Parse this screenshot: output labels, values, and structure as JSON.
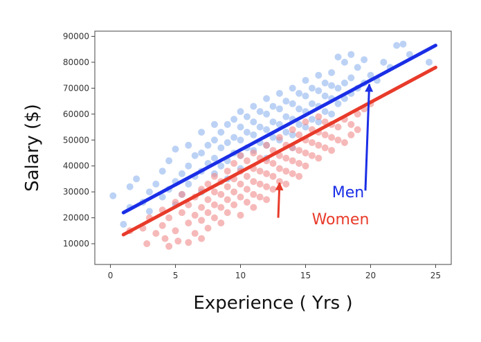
{
  "chart_data": {
    "type": "scatter",
    "title": "",
    "xlabel": "Experience ( Yrs )",
    "ylabel": "Salary ($)",
    "xlim": [
      -1.2,
      26.2
    ],
    "ylim": [
      2000,
      92000
    ],
    "xticks": [
      0,
      5,
      10,
      15,
      20,
      25
    ],
    "yticks": [
      10000,
      20000,
      30000,
      40000,
      50000,
      60000,
      70000,
      80000,
      90000
    ],
    "grid": false,
    "series": [
      {
        "name": "Men",
        "color": "#1a2ee6",
        "point_color": "#6b9be8",
        "fit_line": {
          "x": [
            1,
            25
          ],
          "y": [
            22000,
            86500
          ]
        },
        "points": [
          [
            0.2,
            28500
          ],
          [
            1.0,
            17500
          ],
          [
            1.5,
            24000
          ],
          [
            1.5,
            32000
          ],
          [
            2.0,
            35000
          ],
          [
            2.5,
            26000
          ],
          [
            3.0,
            30000
          ],
          [
            3.0,
            22500
          ],
          [
            3.5,
            33000
          ],
          [
            4.0,
            28000
          ],
          [
            4.0,
            38000
          ],
          [
            4.5,
            31000
          ],
          [
            4.5,
            42000
          ],
          [
            5.0,
            34000
          ],
          [
            5.0,
            25000
          ],
          [
            5.0,
            46500
          ],
          [
            5.5,
            37000
          ],
          [
            5.5,
            29000
          ],
          [
            6.0,
            40000
          ],
          [
            6.0,
            33000
          ],
          [
            6.0,
            48000
          ],
          [
            6.5,
            36000
          ],
          [
            6.5,
            44000
          ],
          [
            7.0,
            38000
          ],
          [
            7.0,
            45000
          ],
          [
            7.0,
            53000
          ],
          [
            7.0,
            30000
          ],
          [
            7.5,
            41000
          ],
          [
            7.5,
            48000
          ],
          [
            8.0,
            37000
          ],
          [
            8.0,
            43000
          ],
          [
            8.0,
            50000
          ],
          [
            8.0,
            56000
          ],
          [
            8.5,
            40000
          ],
          [
            8.5,
            47000
          ],
          [
            8.5,
            53000
          ],
          [
            9.0,
            42000
          ],
          [
            9.0,
            49000
          ],
          [
            9.0,
            56000
          ],
          [
            9.0,
            35000
          ],
          [
            9.5,
            45000
          ],
          [
            9.5,
            51000
          ],
          [
            9.5,
            58000
          ],
          [
            10.0,
            44000
          ],
          [
            10.0,
            50000
          ],
          [
            10.0,
            55000
          ],
          [
            10.0,
            61000
          ],
          [
            10.0,
            39000
          ],
          [
            10.5,
            47000
          ],
          [
            10.5,
            53000
          ],
          [
            10.5,
            59000
          ],
          [
            11.0,
            46000
          ],
          [
            11.0,
            52000
          ],
          [
            11.0,
            57000
          ],
          [
            11.0,
            63000
          ],
          [
            11.5,
            49000
          ],
          [
            11.5,
            55000
          ],
          [
            11.5,
            61000
          ],
          [
            12.0,
            48000
          ],
          [
            12.0,
            54000
          ],
          [
            12.0,
            60000
          ],
          [
            12.0,
            66000
          ],
          [
            12.0,
            43000
          ],
          [
            12.5,
            51000
          ],
          [
            12.5,
            57000
          ],
          [
            12.5,
            63000
          ],
          [
            13.0,
            50000
          ],
          [
            13.0,
            56000
          ],
          [
            13.0,
            62000
          ],
          [
            13.0,
            68000
          ],
          [
            13.5,
            53000
          ],
          [
            13.5,
            59000
          ],
          [
            13.5,
            65000
          ],
          [
            14.0,
            52000
          ],
          [
            14.0,
            58000
          ],
          [
            14.0,
            64000
          ],
          [
            14.0,
            70000
          ],
          [
            14.0,
            47000
          ],
          [
            14.5,
            56000
          ],
          [
            14.5,
            62000
          ],
          [
            14.5,
            68000
          ],
          [
            15.0,
            55000
          ],
          [
            15.0,
            61000
          ],
          [
            15.0,
            67000
          ],
          [
            15.0,
            73000
          ],
          [
            15.5,
            58000
          ],
          [
            15.5,
            64000
          ],
          [
            15.5,
            70000
          ],
          [
            16.0,
            57000
          ],
          [
            16.0,
            63000
          ],
          [
            16.0,
            69000
          ],
          [
            16.0,
            75000
          ],
          [
            16.5,
            61000
          ],
          [
            16.5,
            67000
          ],
          [
            16.5,
            72000
          ],
          [
            17.0,
            60000
          ],
          [
            17.0,
            66000
          ],
          [
            17.0,
            71000
          ],
          [
            17.0,
            76000
          ],
          [
            17.5,
            64000
          ],
          [
            17.5,
            70000
          ],
          [
            17.5,
            82000
          ],
          [
            18.0,
            66000
          ],
          [
            18.0,
            72000
          ],
          [
            18.0,
            80000
          ],
          [
            18.5,
            68000
          ],
          [
            18.5,
            74000
          ],
          [
            18.5,
            83000
          ],
          [
            19.0,
            70000
          ],
          [
            19.0,
            78000
          ],
          [
            19.5,
            72000
          ],
          [
            19.5,
            81000
          ],
          [
            20.0,
            75000
          ],
          [
            20.5,
            73000
          ],
          [
            21.0,
            80000
          ],
          [
            21.5,
            78000
          ],
          [
            22.0,
            86500
          ],
          [
            22.5,
            87000
          ],
          [
            23.0,
            83000
          ],
          [
            24.5,
            80000
          ]
        ]
      },
      {
        "name": "Women",
        "color": "#e83a2a",
        "point_color": "#f08a8a",
        "fit_line": {
          "x": [
            1,
            25
          ],
          "y": [
            13500,
            78000
          ]
        },
        "points": [
          [
            1.5,
            15000
          ],
          [
            2.5,
            16000
          ],
          [
            2.8,
            10000
          ],
          [
            3.0,
            20000
          ],
          [
            3.5,
            14000
          ],
          [
            4.0,
            23000
          ],
          [
            4.0,
            17000
          ],
          [
            4.2,
            12000
          ],
          [
            4.5,
            9000
          ],
          [
            4.5,
            20000
          ],
          [
            5.0,
            26000
          ],
          [
            5.0,
            15000
          ],
          [
            5.2,
            11000
          ],
          [
            5.5,
            22000
          ],
          [
            5.5,
            29000
          ],
          [
            6.0,
            18000
          ],
          [
            6.0,
            10500
          ],
          [
            6.0,
            25000
          ],
          [
            6.5,
            14000
          ],
          [
            6.5,
            21000
          ],
          [
            6.5,
            28000
          ],
          [
            7.0,
            12000
          ],
          [
            7.0,
            19000
          ],
          [
            7.0,
            24000
          ],
          [
            7.0,
            31000
          ],
          [
            7.5,
            16000
          ],
          [
            7.5,
            22000
          ],
          [
            7.5,
            27000
          ],
          [
            7.5,
            33000
          ],
          [
            8.0,
            20000
          ],
          [
            8.0,
            25000
          ],
          [
            8.0,
            30000
          ],
          [
            8.0,
            36000
          ],
          [
            8.5,
            18000
          ],
          [
            8.5,
            24000
          ],
          [
            8.5,
            29000
          ],
          [
            8.5,
            34000
          ],
          [
            9.0,
            22000
          ],
          [
            9.0,
            27000
          ],
          [
            9.0,
            32000
          ],
          [
            9.0,
            38000
          ],
          [
            9.5,
            25000
          ],
          [
            9.5,
            30000
          ],
          [
            9.5,
            35000
          ],
          [
            9.5,
            41000
          ],
          [
            10.0,
            21000
          ],
          [
            10.0,
            28000
          ],
          [
            10.0,
            33000
          ],
          [
            10.0,
            38000
          ],
          [
            10.0,
            44000
          ],
          [
            10.5,
            26000
          ],
          [
            10.5,
            31000
          ],
          [
            10.5,
            36000
          ],
          [
            10.5,
            42000
          ],
          [
            11.0,
            24000
          ],
          [
            11.0,
            29000
          ],
          [
            11.0,
            34000
          ],
          [
            11.0,
            39000
          ],
          [
            11.0,
            45000
          ],
          [
            11.5,
            28000
          ],
          [
            11.5,
            33000
          ],
          [
            11.5,
            38000
          ],
          [
            11.5,
            43000
          ],
          [
            12.0,
            27000
          ],
          [
            12.0,
            32000
          ],
          [
            12.0,
            37000
          ],
          [
            12.0,
            42000
          ],
          [
            12.0,
            48000
          ],
          [
            12.5,
            31000
          ],
          [
            12.5,
            36000
          ],
          [
            12.5,
            41000
          ],
          [
            12.5,
            46000
          ],
          [
            13.0,
            34000
          ],
          [
            13.0,
            39000
          ],
          [
            13.0,
            44000
          ],
          [
            13.0,
            51000
          ],
          [
            13.5,
            33000
          ],
          [
            13.5,
            38000
          ],
          [
            13.5,
            43000
          ],
          [
            13.5,
            48000
          ],
          [
            14.0,
            37000
          ],
          [
            14.0,
            42000
          ],
          [
            14.0,
            47000
          ],
          [
            14.0,
            54000
          ],
          [
            14.5,
            36000
          ],
          [
            14.5,
            41000
          ],
          [
            14.5,
            46000
          ],
          [
            14.5,
            52000
          ],
          [
            15.0,
            40000
          ],
          [
            15.0,
            45000
          ],
          [
            15.0,
            50000
          ],
          [
            15.0,
            57000
          ],
          [
            15.5,
            44000
          ],
          [
            15.5,
            49000
          ],
          [
            15.5,
            54000
          ],
          [
            16.0,
            43000
          ],
          [
            16.0,
            48000
          ],
          [
            16.0,
            53000
          ],
          [
            16.0,
            59000
          ],
          [
            16.5,
            47000
          ],
          [
            16.5,
            52000
          ],
          [
            16.5,
            57000
          ],
          [
            17.0,
            46000
          ],
          [
            17.0,
            51000
          ],
          [
            17.0,
            56000
          ],
          [
            17.5,
            50000
          ],
          [
            17.5,
            55000
          ],
          [
            18.0,
            49000
          ],
          [
            18.0,
            58000
          ],
          [
            18.5,
            52000
          ],
          [
            18.5,
            56000
          ],
          [
            19.0,
            54000
          ],
          [
            19.0,
            60000
          ],
          [
            19.5,
            62000
          ],
          [
            20.0,
            64000
          ]
        ]
      }
    ],
    "annotations": [
      {
        "label": "Men",
        "series": "Men",
        "color": "#1a2ee6",
        "arrow_from": [
          19.6,
          30500
        ],
        "arrow_to": [
          19.9,
          71500
        ]
      },
      {
        "label": "Women",
        "series": "Women",
        "color": "#e83a2a",
        "arrow_from": [
          12.9,
          20000
        ],
        "arrow_to": [
          13.0,
          33500
        ]
      }
    ]
  }
}
